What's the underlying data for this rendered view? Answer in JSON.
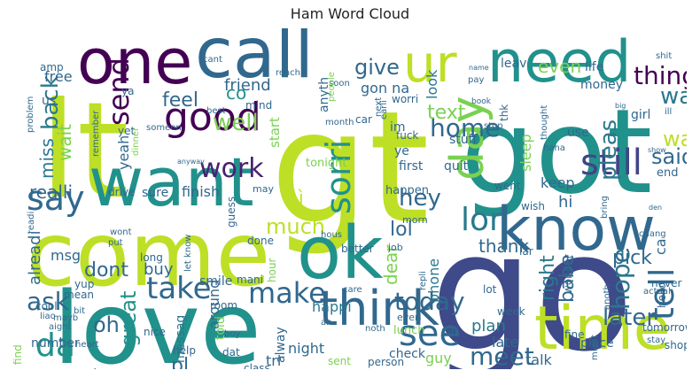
{
  "chart_data": {
    "type": "wordcloud",
    "title": "Ham Word Cloud",
    "background": "#ffffff",
    "colormap": "viridis",
    "words": [
      {
        "text": "gt",
        "weight": 1.0,
        "color": "#bddf26"
      },
      {
        "text": "lt",
        "weight": 0.95,
        "color": "#bddf26"
      },
      {
        "text": "go",
        "weight": 0.93,
        "color": "#3e4a89"
      },
      {
        "text": "got",
        "weight": 0.8,
        "color": "#21918c"
      },
      {
        "text": "come",
        "weight": 0.75,
        "color": "#bddf26"
      },
      {
        "text": "love",
        "weight": 0.7,
        "color": "#21918c"
      },
      {
        "text": "call",
        "weight": 0.52,
        "color": "#31688e"
      },
      {
        "text": "one",
        "weight": 0.5,
        "color": "#440154"
      },
      {
        "text": "want",
        "weight": 0.5,
        "color": "#21918c"
      },
      {
        "text": "need",
        "weight": 0.48,
        "color": "#21918c"
      },
      {
        "text": "know",
        "weight": 0.48,
        "color": "#31688e"
      },
      {
        "text": "time",
        "weight": 0.47,
        "color": "#bddf26"
      },
      {
        "text": "ok",
        "weight": 0.46,
        "color": "#21918c"
      },
      {
        "text": "day",
        "weight": 0.42,
        "color": "#7ad151"
      },
      {
        "text": "ur",
        "weight": 0.4,
        "color": "#bddf26"
      },
      {
        "text": "think",
        "weight": 0.37,
        "color": "#31688e"
      },
      {
        "text": "good",
        "weight": 0.33,
        "color": "#440154"
      },
      {
        "text": "still",
        "weight": 0.31,
        "color": "#414487"
      },
      {
        "text": "tell",
        "weight": 0.3,
        "color": "#31688e"
      },
      {
        "text": "see",
        "weight": 0.29,
        "color": "#31688e"
      },
      {
        "text": "sorri",
        "weight": 0.28,
        "color": "#21918c"
      },
      {
        "text": "lor",
        "weight": 0.27,
        "color": "#2a788e"
      },
      {
        "text": "say",
        "weight": 0.27,
        "color": "#31688e"
      },
      {
        "text": "take",
        "weight": 0.26,
        "color": "#31688e"
      },
      {
        "text": "make",
        "weight": 0.25,
        "color": "#31688e"
      },
      {
        "text": "da",
        "weight": 0.24,
        "color": "#21918c"
      },
      {
        "text": "send",
        "weight": 0.24,
        "color": "#440154"
      },
      {
        "text": "back",
        "weight": 0.22,
        "color": "#2a788e"
      },
      {
        "text": "today",
        "weight": 0.22,
        "color": "#31688e"
      },
      {
        "text": "meet",
        "weight": 0.21,
        "color": "#31688e"
      },
      {
        "text": "work",
        "weight": 0.2,
        "color": "#482173"
      },
      {
        "text": "hope",
        "weight": 0.2,
        "color": "#2a788e"
      },
      {
        "text": "ask",
        "weight": 0.19,
        "color": "#31688e"
      },
      {
        "text": "well",
        "weight": 0.18,
        "color": "#7ad151"
      },
      {
        "text": "home",
        "weight": 0.18,
        "color": "#31688e"
      },
      {
        "text": "thing",
        "weight": 0.17,
        "color": "#440154"
      },
      {
        "text": "way",
        "weight": 0.16,
        "color": "#2a788e"
      },
      {
        "text": "wat",
        "weight": 0.16,
        "color": "#bddf26"
      },
      {
        "text": "pleas",
        "weight": 0.16,
        "color": "#2a788e"
      },
      {
        "text": "miss",
        "weight": 0.16,
        "color": "#2a788e"
      },
      {
        "text": "dont",
        "weight": 0.16,
        "color": "#31688e"
      },
      {
        "text": "later",
        "weight": 0.16,
        "color": "#31688e"
      },
      {
        "text": "give",
        "weight": 0.15,
        "color": "#31688e"
      },
      {
        "text": "great",
        "weight": 0.15,
        "color": "#21918c"
      },
      {
        "text": "hey",
        "weight": 0.15,
        "color": "#31688e"
      },
      {
        "text": "much",
        "weight": 0.14,
        "color": "#bddf26"
      },
      {
        "text": "text",
        "weight": 0.14,
        "color": "#7ad151"
      },
      {
        "text": "feel",
        "weight": 0.14,
        "color": "#31688e"
      },
      {
        "text": "realli",
        "weight": 0.14,
        "color": "#31688e"
      },
      {
        "text": "said",
        "weight": 0.14,
        "color": "#31688e"
      },
      {
        "text": "thank",
        "weight": 0.13,
        "color": "#31688e"
      },
      {
        "text": "lol",
        "weight": 0.13,
        "color": "#31688e"
      },
      {
        "text": "even",
        "weight": 0.13,
        "color": "#7ad151"
      },
      {
        "text": "oh",
        "weight": 0.13,
        "color": "#31688e"
      },
      {
        "text": "right",
        "weight": 0.13,
        "color": "#2a788e"
      },
      {
        "text": "babe",
        "weight": 0.13,
        "color": "#31688e"
      },
      {
        "text": "pick",
        "weight": 0.13,
        "color": "#31688e"
      },
      {
        "text": "friend",
        "weight": 0.12,
        "color": "#31688e"
      },
      {
        "text": "co",
        "weight": 0.12,
        "color": "#21918c"
      },
      {
        "text": "wait",
        "weight": 0.12,
        "color": "#7ad151"
      },
      {
        "text": "alreadi",
        "weight": 0.12,
        "color": "#31688e"
      },
      {
        "text": "dear",
        "weight": 0.12,
        "color": "#7ad151"
      },
      {
        "text": "pl",
        "weight": 0.12,
        "color": "#31688e"
      },
      {
        "text": "yeah",
        "weight": 0.11,
        "color": "#31688e"
      },
      {
        "text": "gon na",
        "weight": 0.11,
        "color": "#31688e"
      },
      {
        "text": "look",
        "weight": 0.11,
        "color": "#2a788e"
      },
      {
        "text": "msg",
        "weight": 0.1,
        "color": "#31688e"
      },
      {
        "text": "phone",
        "weight": 0.1,
        "color": "#2a788e"
      },
      {
        "text": "plan",
        "weight": 0.1,
        "color": "#2a788e"
      },
      {
        "text": "happi",
        "weight": 0.1,
        "color": "#2a788e"
      },
      {
        "text": "sleep",
        "weight": 0.1,
        "color": "#7ad151"
      },
      {
        "text": "keep",
        "weight": 0.1,
        "color": "#31688e"
      },
      {
        "text": "buy",
        "weight": 0.1,
        "color": "#31688e"
      },
      {
        "text": "hi",
        "weight": 0.09,
        "color": "#31688e"
      },
      {
        "text": "finish",
        "weight": 0.09,
        "color": "#31688e"
      },
      {
        "text": "sure",
        "weight": 0.09,
        "color": "#31688e"
      },
      {
        "text": "tri",
        "weight": 0.09,
        "color": "#31688e"
      },
      {
        "text": "night",
        "weight": 0.09,
        "color": "#31688e"
      },
      {
        "text": "late",
        "weight": 0.09,
        "color": "#31688e"
      },
      {
        "text": "talk",
        "weight": 0.09,
        "color": "#31688e"
      },
      {
        "text": "free",
        "weight": 0.09,
        "color": "#31688e"
      },
      {
        "text": "amp",
        "weight": 0.07,
        "color": "#31688e"
      },
      {
        "text": "us",
        "weight": 0.09,
        "color": "#31688e"
      },
      {
        "text": "ì",
        "weight": 0.09,
        "color": "#bddf26"
      },
      {
        "text": "mani",
        "weight": 0.07,
        "color": "#31688e"
      },
      {
        "text": "smile",
        "weight": 0.07,
        "color": "#31688e"
      },
      {
        "text": "around",
        "weight": 0.07,
        "color": "#31688e"
      },
      {
        "text": "messag",
        "weight": 0.07,
        "color": "#2a788e"
      },
      {
        "text": "guy",
        "weight": 0.07,
        "color": "#7ad151"
      },
      {
        "text": "alway",
        "weight": 0.07,
        "color": "#31688e"
      },
      {
        "text": "someth",
        "weight": 0.07,
        "color": "#31688e"
      },
      {
        "text": "number",
        "weight": 0.07,
        "color": "#31688e"
      },
      {
        "text": "cool",
        "weight": 0.06,
        "color": "#31688e"
      },
      {
        "text": "watch",
        "weight": 0.06,
        "color": "#31688e"
      },
      {
        "text": "end",
        "weight": 0.06,
        "color": "#31688e"
      },
      {
        "text": "start",
        "weight": 0.06,
        "color": "#7ad151"
      },
      {
        "text": "mind",
        "weight": 0.06,
        "color": "#31688e"
      },
      {
        "text": "tonight",
        "weight": 0.06,
        "color": "#7ad151"
      },
      {
        "text": "happen",
        "weight": 0.06,
        "color": "#31688e"
      },
      {
        "text": "first",
        "weight": 0.06,
        "color": "#31688e"
      },
      {
        "text": "stuff",
        "weight": 0.06,
        "color": "#31688e"
      },
      {
        "text": "money",
        "weight": 0.06,
        "color": "#31688e"
      },
      {
        "text": "leav",
        "weight": 0.06,
        "color": "#31688e"
      },
      {
        "text": "life",
        "weight": 0.06,
        "color": "#31688e"
      },
      {
        "text": "anyth",
        "weight": 0.06,
        "color": "#31688e"
      },
      {
        "text": "use",
        "weight": 0.06,
        "color": "#31688e"
      },
      {
        "text": "girl",
        "weight": 0.06,
        "color": "#31688e"
      },
      {
        "text": "hour",
        "weight": 0.05,
        "color": "#7ad151"
      },
      {
        "text": "done",
        "weight": 0.05,
        "color": "#31688e"
      },
      {
        "text": "week",
        "weight": 0.05,
        "color": "#31688e"
      },
      {
        "text": "lunch",
        "weight": 0.05,
        "color": "#7ad151"
      },
      {
        "text": "check",
        "weight": 0.05,
        "color": "#31688e"
      },
      {
        "text": "place",
        "weight": 0.05,
        "color": "#31688e"
      },
      {
        "text": "fine",
        "weight": 0.05,
        "color": "#31688e"
      },
      {
        "text": "told",
        "weight": 0.05,
        "color": "#7ad151"
      },
      {
        "text": "quit",
        "weight": 0.05,
        "color": "#31688e"
      },
      {
        "text": "went",
        "weight": 0.05,
        "color": "#31688e"
      },
      {
        "text": "worri",
        "weight": 0.05,
        "color": "#31688e"
      },
      {
        "text": "wish",
        "weight": 0.05,
        "color": "#31688e"
      },
      {
        "text": "yup",
        "weight": 0.05,
        "color": "#31688e"
      },
      {
        "text": "ye",
        "weight": 0.05,
        "color": "#31688e"
      },
      {
        "text": "eat",
        "weight": 0.05,
        "color": "#31688e"
      },
      {
        "text": "room",
        "weight": 0.05,
        "color": "#31688e"
      },
      {
        "text": "nice",
        "weight": 0.05,
        "color": "#31688e"
      },
      {
        "text": "mean",
        "weight": 0.05,
        "color": "#31688e"
      },
      {
        "text": "help",
        "weight": 0.05,
        "color": "#31688e"
      },
      {
        "text": "drive",
        "weight": 0.05,
        "color": "#31688e"
      },
      {
        "text": "hello",
        "weight": 0.05,
        "color": "#31688e"
      },
      {
        "text": "tomorrow",
        "weight": 0.05,
        "color": "#31688e"
      },
      {
        "text": "ca",
        "weight": 0.05,
        "color": "#31688e"
      },
      {
        "text": "shop",
        "weight": 0.05,
        "color": "#31688e"
      },
      {
        "text": "im",
        "weight": 0.05,
        "color": "#31688e"
      },
      {
        "text": "fuck",
        "weight": 0.05,
        "color": "#31688e"
      },
      {
        "text": "thk",
        "weight": 0.05,
        "color": "#31688e"
      },
      {
        "text": "yet",
        "weight": 0.04,
        "color": "#31688e"
      },
      {
        "text": "remember",
        "weight": 0.04,
        "color": "#31688e"
      },
      {
        "text": "someon",
        "weight": 0.04,
        "color": "#31688e"
      },
      {
        "text": "may",
        "weight": 0.04,
        "color": "#31688e"
      },
      {
        "text": "let know",
        "weight": 0.04,
        "color": "#31688e"
      },
      {
        "text": "better",
        "weight": 0.04,
        "color": "#31688e"
      },
      {
        "text": "job",
        "weight": 0.04,
        "color": "#31688e"
      },
      {
        "text": "lot",
        "weight": 0.04,
        "color": "#31688e"
      },
      {
        "text": "wonder",
        "weight": 0.04,
        "color": "#31688e"
      },
      {
        "text": "never",
        "weight": 0.04,
        "color": "#31688e"
      },
      {
        "text": "sent",
        "weight": 0.04,
        "color": "#7ad151"
      },
      {
        "text": "person",
        "weight": 0.04,
        "color": "#31688e"
      },
      {
        "text": "class",
        "weight": 0.04,
        "color": "#31688e"
      },
      {
        "text": "dat",
        "weight": 0.04,
        "color": "#31688e"
      },
      {
        "text": "heart",
        "weight": 0.03,
        "color": "#31688e"
      },
      {
        "text": "aight",
        "weight": 0.03,
        "color": "#31688e"
      },
      {
        "text": "bit",
        "weight": 0.03,
        "color": "#31688e"
      },
      {
        "text": "liao",
        "weight": 0.03,
        "color": "#31688e"
      },
      {
        "text": "find",
        "weight": 0.03,
        "color": "#7ad151"
      },
      {
        "text": "long",
        "weight": 0.03,
        "color": "#31688e"
      },
      {
        "text": "put",
        "weight": 0.03,
        "color": "#31688e"
      },
      {
        "text": "wont",
        "weight": 0.03,
        "color": "#31688e"
      },
      {
        "text": "readi",
        "weight": 0.03,
        "color": "#31688e"
      },
      {
        "text": "guess",
        "weight": 0.03,
        "color": "#31688e"
      },
      {
        "text": "hous",
        "weight": 0.03,
        "color": "#31688e"
      },
      {
        "text": "morn",
        "weight": 0.03,
        "color": "#31688e"
      },
      {
        "text": "everi",
        "weight": 0.03,
        "color": "#31688e"
      },
      {
        "text": "repli",
        "weight": 0.03,
        "color": "#31688e"
      },
      {
        "text": "lar",
        "weight": 0.03,
        "color": "#31688e"
      },
      {
        "text": "anoth",
        "weight": 0.03,
        "color": "#31688e"
      },
      {
        "text": "might",
        "weight": 0.03,
        "color": "#31688e"
      },
      {
        "text": "actual",
        "weight": 0.03,
        "color": "#31688e"
      },
      {
        "text": "bring",
        "weight": 0.03,
        "color": "#31688e"
      },
      {
        "text": "chang",
        "weight": 0.03,
        "color": "#31688e"
      },
      {
        "text": "stay",
        "weight": 0.03,
        "color": "#31688e"
      },
      {
        "text": "noth",
        "weight": 0.03,
        "color": "#31688e"
      },
      {
        "text": "care",
        "weight": 0.03,
        "color": "#31688e"
      },
      {
        "text": "ah",
        "weight": 0.03,
        "color": "#31688e"
      },
      {
        "text": "boy",
        "weight": 0.02,
        "color": "#31688e"
      },
      {
        "text": "mayb",
        "weight": 0.03,
        "color": "#31688e"
      },
      {
        "text": "problem",
        "weight": 0.03,
        "color": "#31688e"
      },
      {
        "text": "ya",
        "weight": 0.03,
        "color": "#31688e"
      },
      {
        "text": "best",
        "weight": 0.03,
        "color": "#31688e"
      },
      {
        "text": "dinner",
        "weight": 0.03,
        "color": "#7ad151"
      },
      {
        "text": "anyway",
        "weight": 0.03,
        "color": "#31688e"
      },
      {
        "text": "cant",
        "weight": 0.03,
        "color": "#31688e"
      },
      {
        "text": "soon",
        "weight": 0.03,
        "color": "#31688e"
      },
      {
        "text": "reach",
        "weight": 0.03,
        "color": "#31688e"
      },
      {
        "text": "people",
        "weight": 0.03,
        "color": "#7ad151"
      },
      {
        "text": "car",
        "weight": 0.03,
        "color": "#31688e"
      },
      {
        "text": "earli",
        "weight": 0.03,
        "color": "#31688e"
      },
      {
        "text": "next",
        "weight": 0.03,
        "color": "#31688e"
      },
      {
        "text": "name",
        "weight": 0.02,
        "color": "#31688e"
      },
      {
        "text": "pay",
        "weight": 0.03,
        "color": "#31688e"
      },
      {
        "text": "book",
        "weight": 0.03,
        "color": "#31688e"
      },
      {
        "text": "month",
        "weight": 0.03,
        "color": "#31688e"
      },
      {
        "text": "stop",
        "weight": 0.03,
        "color": "#31688e"
      },
      {
        "text": "haha",
        "weight": 0.03,
        "color": "#31688e"
      },
      {
        "text": "thought",
        "weight": 0.03,
        "color": "#31688e"
      },
      {
        "text": "big",
        "weight": 0.02,
        "color": "#31688e"
      },
      {
        "text": "ill",
        "weight": 0.03,
        "color": "#31688e"
      },
      {
        "text": "shit",
        "weight": 0.03,
        "color": "#31688e"
      },
      {
        "text": "show",
        "weight": 0.02,
        "color": "#31688e"
      },
      {
        "text": "den",
        "weight": 0.02,
        "color": "#31688e"
      }
    ]
  }
}
